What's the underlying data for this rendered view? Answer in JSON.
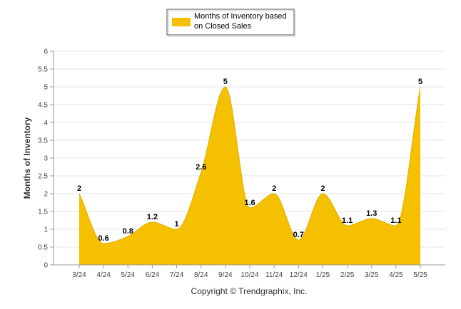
{
  "chart_data": {
    "type": "area",
    "categories": [
      "3/24",
      "4/24",
      "5/24",
      "6/24",
      "7/24",
      "8/24",
      "9/24",
      "10/24",
      "11/24",
      "12/24",
      "1/25",
      "2/25",
      "3/25",
      "4/25",
      "5/25"
    ],
    "series": [
      {
        "name": "Months of Inventory based on Closed Sales",
        "values": [
          2,
          0.6,
          0.8,
          1.2,
          1,
          2.6,
          5,
          1.6,
          2,
          0.7,
          2,
          1.1,
          1.3,
          1.1,
          5
        ],
        "color": "#F5C000"
      }
    ],
    "data_labels": [
      "2",
      "0.6",
      "0.8",
      "1.2",
      "1",
      "2.6",
      "5",
      "1.6",
      "2",
      "0.7",
      "2",
      "1.1",
      "1.3",
      "1.1",
      "5"
    ],
    "xlabel": "",
    "ylabel": "Months of Inventory",
    "ylim": [
      0,
      6
    ],
    "yticks": [
      "0",
      "0.5",
      "1",
      "1.5",
      "2",
      "2.5",
      "3",
      "3.5",
      "4",
      "4.5",
      "5",
      "5.5",
      "6"
    ],
    "grid": true,
    "legend_position": "top-center",
    "footer": "Copyright © Trendgraphix, Inc."
  }
}
